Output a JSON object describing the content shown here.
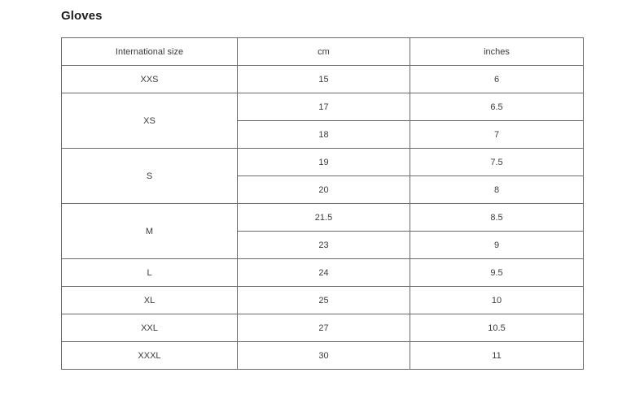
{
  "page": {
    "title": "Gloves"
  },
  "table": {
    "columns": [
      "International size",
      "cm",
      "inches"
    ],
    "groups": [
      {
        "size": "XXS",
        "rows": [
          {
            "cm": "15",
            "inches": "6"
          }
        ]
      },
      {
        "size": "XS",
        "rows": [
          {
            "cm": "17",
            "inches": "6.5"
          },
          {
            "cm": "18",
            "inches": "7"
          }
        ]
      },
      {
        "size": "S",
        "rows": [
          {
            "cm": "19",
            "inches": "7.5"
          },
          {
            "cm": "20",
            "inches": "8"
          }
        ]
      },
      {
        "size": "M",
        "rows": [
          {
            "cm": "21.5",
            "inches": "8.5"
          },
          {
            "cm": "23",
            "inches": "9"
          }
        ]
      },
      {
        "size": "L",
        "rows": [
          {
            "cm": "24",
            "inches": "9.5"
          }
        ]
      },
      {
        "size": "XL",
        "rows": [
          {
            "cm": "25",
            "inches": "10"
          }
        ]
      },
      {
        "size": "XXL",
        "rows": [
          {
            "cm": "27",
            "inches": "10.5"
          }
        ]
      },
      {
        "size": "XXXL",
        "rows": [
          {
            "cm": "30",
            "inches": "11"
          }
        ]
      }
    ]
  },
  "colors": {
    "background": "#ffffff",
    "border": "#6a6a6a",
    "text": "#3b3b3b",
    "title": "#1c1c1c"
  }
}
